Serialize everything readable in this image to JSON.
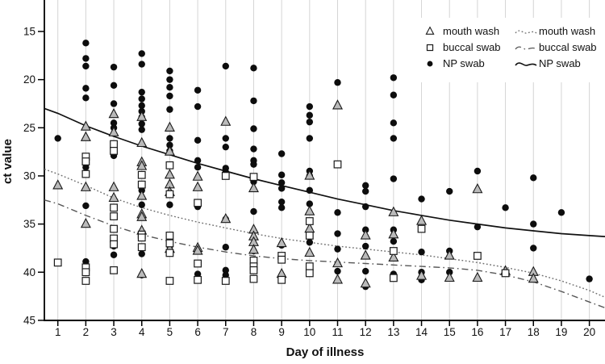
{
  "figure": {
    "y_axis_label": "ct value",
    "x_axis_label": "Day of illness",
    "y_ticks": [
      15,
      20,
      25,
      30,
      35,
      40,
      45
    ],
    "x_ticks": [
      1,
      2,
      3,
      4,
      5,
      6,
      7,
      8,
      9,
      10,
      11,
      12,
      13,
      14,
      15,
      16,
      17,
      18,
      19,
      20
    ],
    "colors": {
      "grid": "#d4d4d4",
      "axis": "#000000",
      "circle_fill": "#0d0d0d",
      "triangle_fill": "#bababa",
      "square_fill": "#ffffff",
      "marker_stroke": "#1a1a1a",
      "dotted_line": "#6e6e6e",
      "dashdot_line": "#565656",
      "solid_line": "#111111"
    },
    "legend_markers": [
      {
        "marker": "triangle",
        "label": "mouth wash"
      },
      {
        "marker": "square",
        "label": "buccal swab"
      },
      {
        "marker": "circle",
        "label": "NP swab"
      }
    ],
    "legend_lines": [
      {
        "style": "dotted",
        "label": "mouth wash"
      },
      {
        "style": "dashdot",
        "label": "buccal swab"
      },
      {
        "style": "solid",
        "label": "NP swab"
      }
    ]
  },
  "chart_data": {
    "type": "scatter",
    "title": "",
    "xlabel": "Day of illness",
    "ylabel": "ct value",
    "xlim": [
      0.5,
      20.6
    ],
    "ylim": [
      45,
      11.8
    ],
    "y_axis_inverted": true,
    "grid": "vertical-only",
    "legend_position": "top-right",
    "series": [
      {
        "name": "NP swab",
        "marker": "circle",
        "points": [
          [
            1,
            26.1
          ],
          [
            2,
            16.2
          ],
          [
            2,
            17.8
          ],
          [
            2,
            18.6
          ],
          [
            2,
            20.9
          ],
          [
            2,
            21.9
          ],
          [
            2,
            29.1
          ],
          [
            2,
            33.1
          ],
          [
            2,
            38.9
          ],
          [
            2,
            39.4
          ],
          [
            3,
            18.7
          ],
          [
            3,
            20.6
          ],
          [
            3,
            22.5
          ],
          [
            3,
            24.5
          ],
          [
            3,
            25.0
          ],
          [
            3,
            27.9
          ],
          [
            3,
            37.3
          ],
          [
            3,
            38.2
          ],
          [
            4,
            17.3
          ],
          [
            4,
            18.4
          ],
          [
            4,
            21.3
          ],
          [
            4,
            22.0
          ],
          [
            4,
            22.7
          ],
          [
            4,
            23.3
          ],
          [
            4,
            23.9
          ],
          [
            4,
            24.6
          ],
          [
            4,
            25.2
          ],
          [
            4,
            31.5
          ],
          [
            4,
            33.0
          ],
          [
            4,
            38.1
          ],
          [
            4,
            40.3
          ],
          [
            5,
            19.1
          ],
          [
            5,
            20.0
          ],
          [
            5,
            20.8
          ],
          [
            5,
            21.7
          ],
          [
            5,
            23.1
          ],
          [
            5,
            26.1
          ],
          [
            5,
            26.8
          ],
          [
            5,
            27.4
          ],
          [
            5,
            33.0
          ],
          [
            5,
            37.3
          ],
          [
            6,
            21.1
          ],
          [
            6,
            22.8
          ],
          [
            6,
            26.3
          ],
          [
            6,
            28.4
          ],
          [
            6,
            29.1
          ],
          [
            6,
            33.2
          ],
          [
            6,
            39.1
          ],
          [
            6,
            40.2
          ],
          [
            6,
            40.8
          ],
          [
            7,
            18.6
          ],
          [
            7,
            26.1
          ],
          [
            7,
            27.0
          ],
          [
            7,
            29.2
          ],
          [
            7,
            29.6
          ],
          [
            7,
            34.5
          ],
          [
            7,
            37.4
          ],
          [
            7,
            39.8
          ],
          [
            7,
            40.3
          ],
          [
            8,
            18.8
          ],
          [
            8,
            22.2
          ],
          [
            8,
            25.1
          ],
          [
            8,
            27.2
          ],
          [
            8,
            28.4
          ],
          [
            8,
            28.8
          ],
          [
            8,
            30.6
          ],
          [
            8,
            33.7
          ],
          [
            8,
            37.8
          ],
          [
            9,
            27.7
          ],
          [
            9,
            29.9
          ],
          [
            9,
            30.7
          ],
          [
            9,
            31.3
          ],
          [
            9,
            32.7
          ],
          [
            9,
            33.3
          ],
          [
            9,
            37.2
          ],
          [
            9,
            40.4
          ],
          [
            10,
            22.8
          ],
          [
            10,
            23.7
          ],
          [
            10,
            24.4
          ],
          [
            10,
            26.1
          ],
          [
            10,
            29.5
          ],
          [
            10,
            30.0
          ],
          [
            10,
            31.5
          ],
          [
            10,
            32.9
          ],
          [
            10,
            36.9
          ],
          [
            10,
            39.8
          ],
          [
            11,
            20.3
          ],
          [
            11,
            33.8
          ],
          [
            11,
            36.0
          ],
          [
            11,
            37.6
          ],
          [
            11,
            39.9
          ],
          [
            12,
            31.0
          ],
          [
            12,
            31.6
          ],
          [
            12,
            33.2
          ],
          [
            12,
            35.6
          ],
          [
            12,
            37.3
          ],
          [
            12,
            39.9
          ],
          [
            12,
            41.5
          ],
          [
            13,
            19.8
          ],
          [
            13,
            21.6
          ],
          [
            13,
            24.5
          ],
          [
            13,
            26.1
          ],
          [
            13,
            30.3
          ],
          [
            13,
            35.6
          ],
          [
            13,
            36.8
          ],
          [
            13,
            40.2
          ],
          [
            14,
            32.4
          ],
          [
            14,
            37.9
          ],
          [
            14,
            40.0
          ],
          [
            14,
            40.8
          ],
          [
            15,
            31.6
          ],
          [
            15,
            37.8
          ],
          [
            15,
            40.0
          ],
          [
            16,
            29.5
          ],
          [
            16,
            35.3
          ],
          [
            17,
            33.3
          ],
          [
            18,
            30.2
          ],
          [
            18,
            35.0
          ],
          [
            18,
            37.5
          ],
          [
            19,
            33.8
          ],
          [
            20,
            40.7
          ]
        ]
      },
      {
        "name": "mouth wash",
        "marker": "triangle",
        "points": [
          [
            1,
            31.0
          ],
          [
            2,
            24.9
          ],
          [
            2,
            26.0
          ],
          [
            2,
            31.2
          ],
          [
            2,
            35.0
          ],
          [
            3,
            23.6
          ],
          [
            3,
            25.5
          ],
          [
            3,
            31.2
          ],
          [
            3,
            32.3
          ],
          [
            4,
            23.9
          ],
          [
            4,
            26.6
          ],
          [
            4,
            28.6
          ],
          [
            4,
            29.0
          ],
          [
            4,
            32.1
          ],
          [
            4,
            34.0
          ],
          [
            4,
            34.3
          ],
          [
            4,
            35.7
          ],
          [
            4,
            40.2
          ],
          [
            5,
            25.0
          ],
          [
            5,
            27.5
          ],
          [
            5,
            29.9
          ],
          [
            5,
            30.9
          ],
          [
            5,
            31.7
          ],
          [
            5,
            37.6
          ],
          [
            6,
            30.1
          ],
          [
            6,
            31.2
          ],
          [
            6,
            37.5
          ],
          [
            6,
            37.8
          ],
          [
            7,
            24.4
          ],
          [
            7,
            34.5
          ],
          [
            8,
            31.3
          ],
          [
            8,
            35.6
          ],
          [
            8,
            36.3
          ],
          [
            8,
            36.9
          ],
          [
            8,
            37.7
          ],
          [
            9,
            37.0
          ],
          [
            9,
            40.2
          ],
          [
            10,
            30.0
          ],
          [
            10,
            33.7
          ],
          [
            10,
            35.5
          ],
          [
            10,
            38.0
          ],
          [
            11,
            22.7
          ],
          [
            11,
            39.1
          ],
          [
            11,
            40.8
          ],
          [
            12,
            36.2
          ],
          [
            12,
            38.3
          ],
          [
            12,
            41.2
          ],
          [
            13,
            33.8
          ],
          [
            13,
            36.1
          ],
          [
            13,
            38.5
          ],
          [
            14,
            34.7
          ],
          [
            14,
            40.4
          ],
          [
            15,
            38.3
          ],
          [
            15,
            40.6
          ],
          [
            16,
            31.4
          ],
          [
            16,
            40.6
          ],
          [
            17,
            39.9
          ],
          [
            18,
            40.0
          ],
          [
            18,
            40.7
          ]
        ]
      },
      {
        "name": "buccal swab",
        "marker": "square",
        "points": [
          [
            1,
            39.0
          ],
          [
            2,
            28.0
          ],
          [
            2,
            28.5
          ],
          [
            2,
            29.8
          ],
          [
            2,
            39.5
          ],
          [
            2,
            40.0
          ],
          [
            2,
            40.9
          ],
          [
            3,
            26.7
          ],
          [
            3,
            27.4
          ],
          [
            3,
            33.3
          ],
          [
            3,
            34.2
          ],
          [
            3,
            35.5
          ],
          [
            3,
            36.5
          ],
          [
            3,
            37.1
          ],
          [
            3,
            39.8
          ],
          [
            4,
            29.9
          ],
          [
            4,
            30.9
          ],
          [
            4,
            36.1
          ],
          [
            4,
            36.4
          ],
          [
            4,
            37.4
          ],
          [
            5,
            28.9
          ],
          [
            5,
            31.9
          ],
          [
            5,
            36.2
          ],
          [
            5,
            37.0
          ],
          [
            5,
            38.0
          ],
          [
            5,
            40.9
          ],
          [
            6,
            32.8
          ],
          [
            6,
            39.1
          ],
          [
            6,
            40.8
          ],
          [
            7,
            30.0
          ],
          [
            7,
            40.9
          ],
          [
            8,
            30.1
          ],
          [
            8,
            38.8
          ],
          [
            8,
            39.4
          ],
          [
            8,
            39.8
          ],
          [
            8,
            40.7
          ],
          [
            9,
            38.3
          ],
          [
            9,
            38.7
          ],
          [
            9,
            40.8
          ],
          [
            10,
            34.7
          ],
          [
            10,
            36.2
          ],
          [
            10,
            39.4
          ],
          [
            10,
            40.1
          ],
          [
            11,
            28.8
          ],
          [
            13,
            37.8
          ],
          [
            13,
            40.6
          ],
          [
            14,
            35.5
          ],
          [
            16,
            38.3
          ],
          [
            17,
            40.1
          ]
        ]
      }
    ],
    "fitted_curves": [
      {
        "name": "NP swab",
        "style": "solid",
        "points": [
          [
            0.52,
            23.0
          ],
          [
            1,
            23.5
          ],
          [
            2,
            24.8
          ],
          [
            3,
            25.9
          ],
          [
            4,
            26.9
          ],
          [
            5,
            27.8
          ],
          [
            6,
            28.7
          ],
          [
            7,
            29.5
          ],
          [
            8,
            30.3
          ],
          [
            9,
            31.0
          ],
          [
            10,
            31.7
          ],
          [
            11,
            32.4
          ],
          [
            12,
            33.0
          ],
          [
            13,
            33.6
          ],
          [
            14,
            34.1
          ],
          [
            15,
            34.6
          ],
          [
            16,
            35.0
          ],
          [
            17,
            35.4
          ],
          [
            18,
            35.7
          ],
          [
            19,
            36.0
          ],
          [
            20,
            36.2
          ],
          [
            20.56,
            36.3
          ]
        ]
      },
      {
        "name": "mouth wash",
        "style": "dotted",
        "points": [
          [
            0.52,
            29.3
          ],
          [
            1,
            29.8
          ],
          [
            2,
            31.0
          ],
          [
            3,
            32.3
          ],
          [
            4,
            33.3
          ],
          [
            5,
            34.1
          ],
          [
            6,
            34.8
          ],
          [
            7,
            35.4
          ],
          [
            8,
            36.0
          ],
          [
            9,
            36.5
          ],
          [
            10,
            36.9
          ],
          [
            11,
            37.3
          ],
          [
            12,
            37.6
          ],
          [
            13,
            37.9
          ],
          [
            14,
            38.2
          ],
          [
            15,
            38.6
          ],
          [
            16,
            39.0
          ],
          [
            17,
            39.5
          ],
          [
            18,
            40.1
          ],
          [
            19,
            40.9
          ],
          [
            20,
            41.9
          ],
          [
            20.56,
            42.6
          ]
        ]
      },
      {
        "name": "buccal swab",
        "style": "dashdot",
        "points": [
          [
            0.52,
            32.5
          ],
          [
            1,
            32.9
          ],
          [
            2,
            34.1
          ],
          [
            3,
            35.2
          ],
          [
            4,
            36.1
          ],
          [
            5,
            36.8
          ],
          [
            6,
            37.4
          ],
          [
            7,
            37.9
          ],
          [
            8,
            38.3
          ],
          [
            9,
            38.6
          ],
          [
            10,
            38.8
          ],
          [
            11,
            38.95
          ],
          [
            12,
            39.1
          ],
          [
            13,
            39.25
          ],
          [
            14,
            39.4
          ],
          [
            15,
            39.55
          ],
          [
            16,
            39.8
          ],
          [
            17,
            40.3
          ],
          [
            18,
            41.0
          ],
          [
            19,
            42.0
          ],
          [
            20,
            43.1
          ],
          [
            20.56,
            43.7
          ]
        ]
      }
    ]
  }
}
